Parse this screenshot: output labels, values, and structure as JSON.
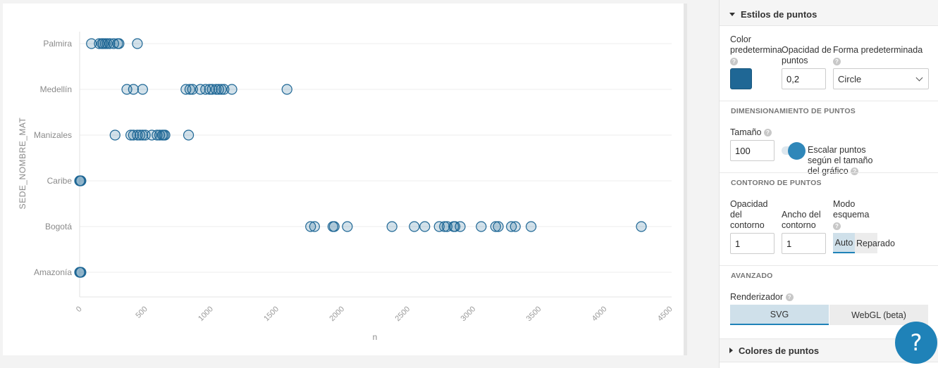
{
  "chart_data": {
    "type": "scatter",
    "title": "",
    "xlabel": "n",
    "ylabel": "SEDE_NOMBRE_MAT",
    "xlim": [
      0,
      4500
    ],
    "x_ticks": [
      "0",
      "500",
      "1000",
      "1500",
      "2000",
      "2500",
      "3000",
      "3500",
      "4000",
      "4500"
    ],
    "categories": [
      "Palmira",
      "Medellín",
      "Manizales",
      "Caribe",
      "Bogotá",
      "Amazonía"
    ],
    "grid": true,
    "point_color": "#1f6795",
    "point_opacity": 0.2,
    "points": {
      "Palmira": [
        90,
        150,
        170,
        180,
        195,
        210,
        230,
        260,
        290,
        300,
        440
      ],
      "Medellín": [
        360,
        410,
        480,
        810,
        840,
        860,
        920,
        960,
        990,
        1010,
        1040,
        1060,
        1080,
        1100,
        1160,
        1580
      ],
      "Manizales": [
        270,
        390,
        410,
        440,
        460,
        480,
        500,
        550,
        590,
        610,
        630,
        640,
        650,
        830
      ],
      "Caribe": [
        0,
        5,
        10
      ],
      "Bogotá": [
        1760,
        1790,
        1930,
        1940,
        2040,
        2380,
        2550,
        2630,
        2740,
        2780,
        2800,
        2850,
        2860,
        2900,
        3060,
        3170,
        3190,
        3290,
        3320,
        3440,
        4280
      ],
      "Amazonía": [
        0,
        5,
        10
      ]
    }
  },
  "panel": {
    "top_partial": "",
    "point_styles": {
      "header": "Estilos de puntos",
      "color_label": "Color predetermina",
      "opacity_label": "Opacidad de puntos",
      "opacity_value": "0,2",
      "shape_label": "Forma predeterminada",
      "shape_value": "Circle"
    },
    "sizing": {
      "title": "DIMENSIONAMIENTO DE PUNTOS",
      "size_label": "Tamaño",
      "size_value": "100",
      "scale_label": "Escalar puntos según el tamaño del gráfico"
    },
    "outline": {
      "title": "CONTORNO DE PUNTOS",
      "opacity_label": "Opacidad del contorno",
      "opacity_value": "1",
      "width_label": "Ancho del contorno",
      "width_value": "1",
      "mode_label": "Modo esquema",
      "mode_auto": "Auto",
      "mode_fixed": "Reparado"
    },
    "advanced": {
      "title": "AVANZADO",
      "renderer_label": "Renderizador",
      "svg": "SVG",
      "webgl": "WebGL (beta)"
    },
    "point_colors": {
      "header": "Colores de puntos"
    },
    "help_glyph": "?",
    "help_fab": "?"
  },
  "icons": {
    "caret_down": "caret-down-icon",
    "caret_right": "caret-right-icon",
    "help": "help-icon",
    "chevron": "chevron-down-icon"
  }
}
